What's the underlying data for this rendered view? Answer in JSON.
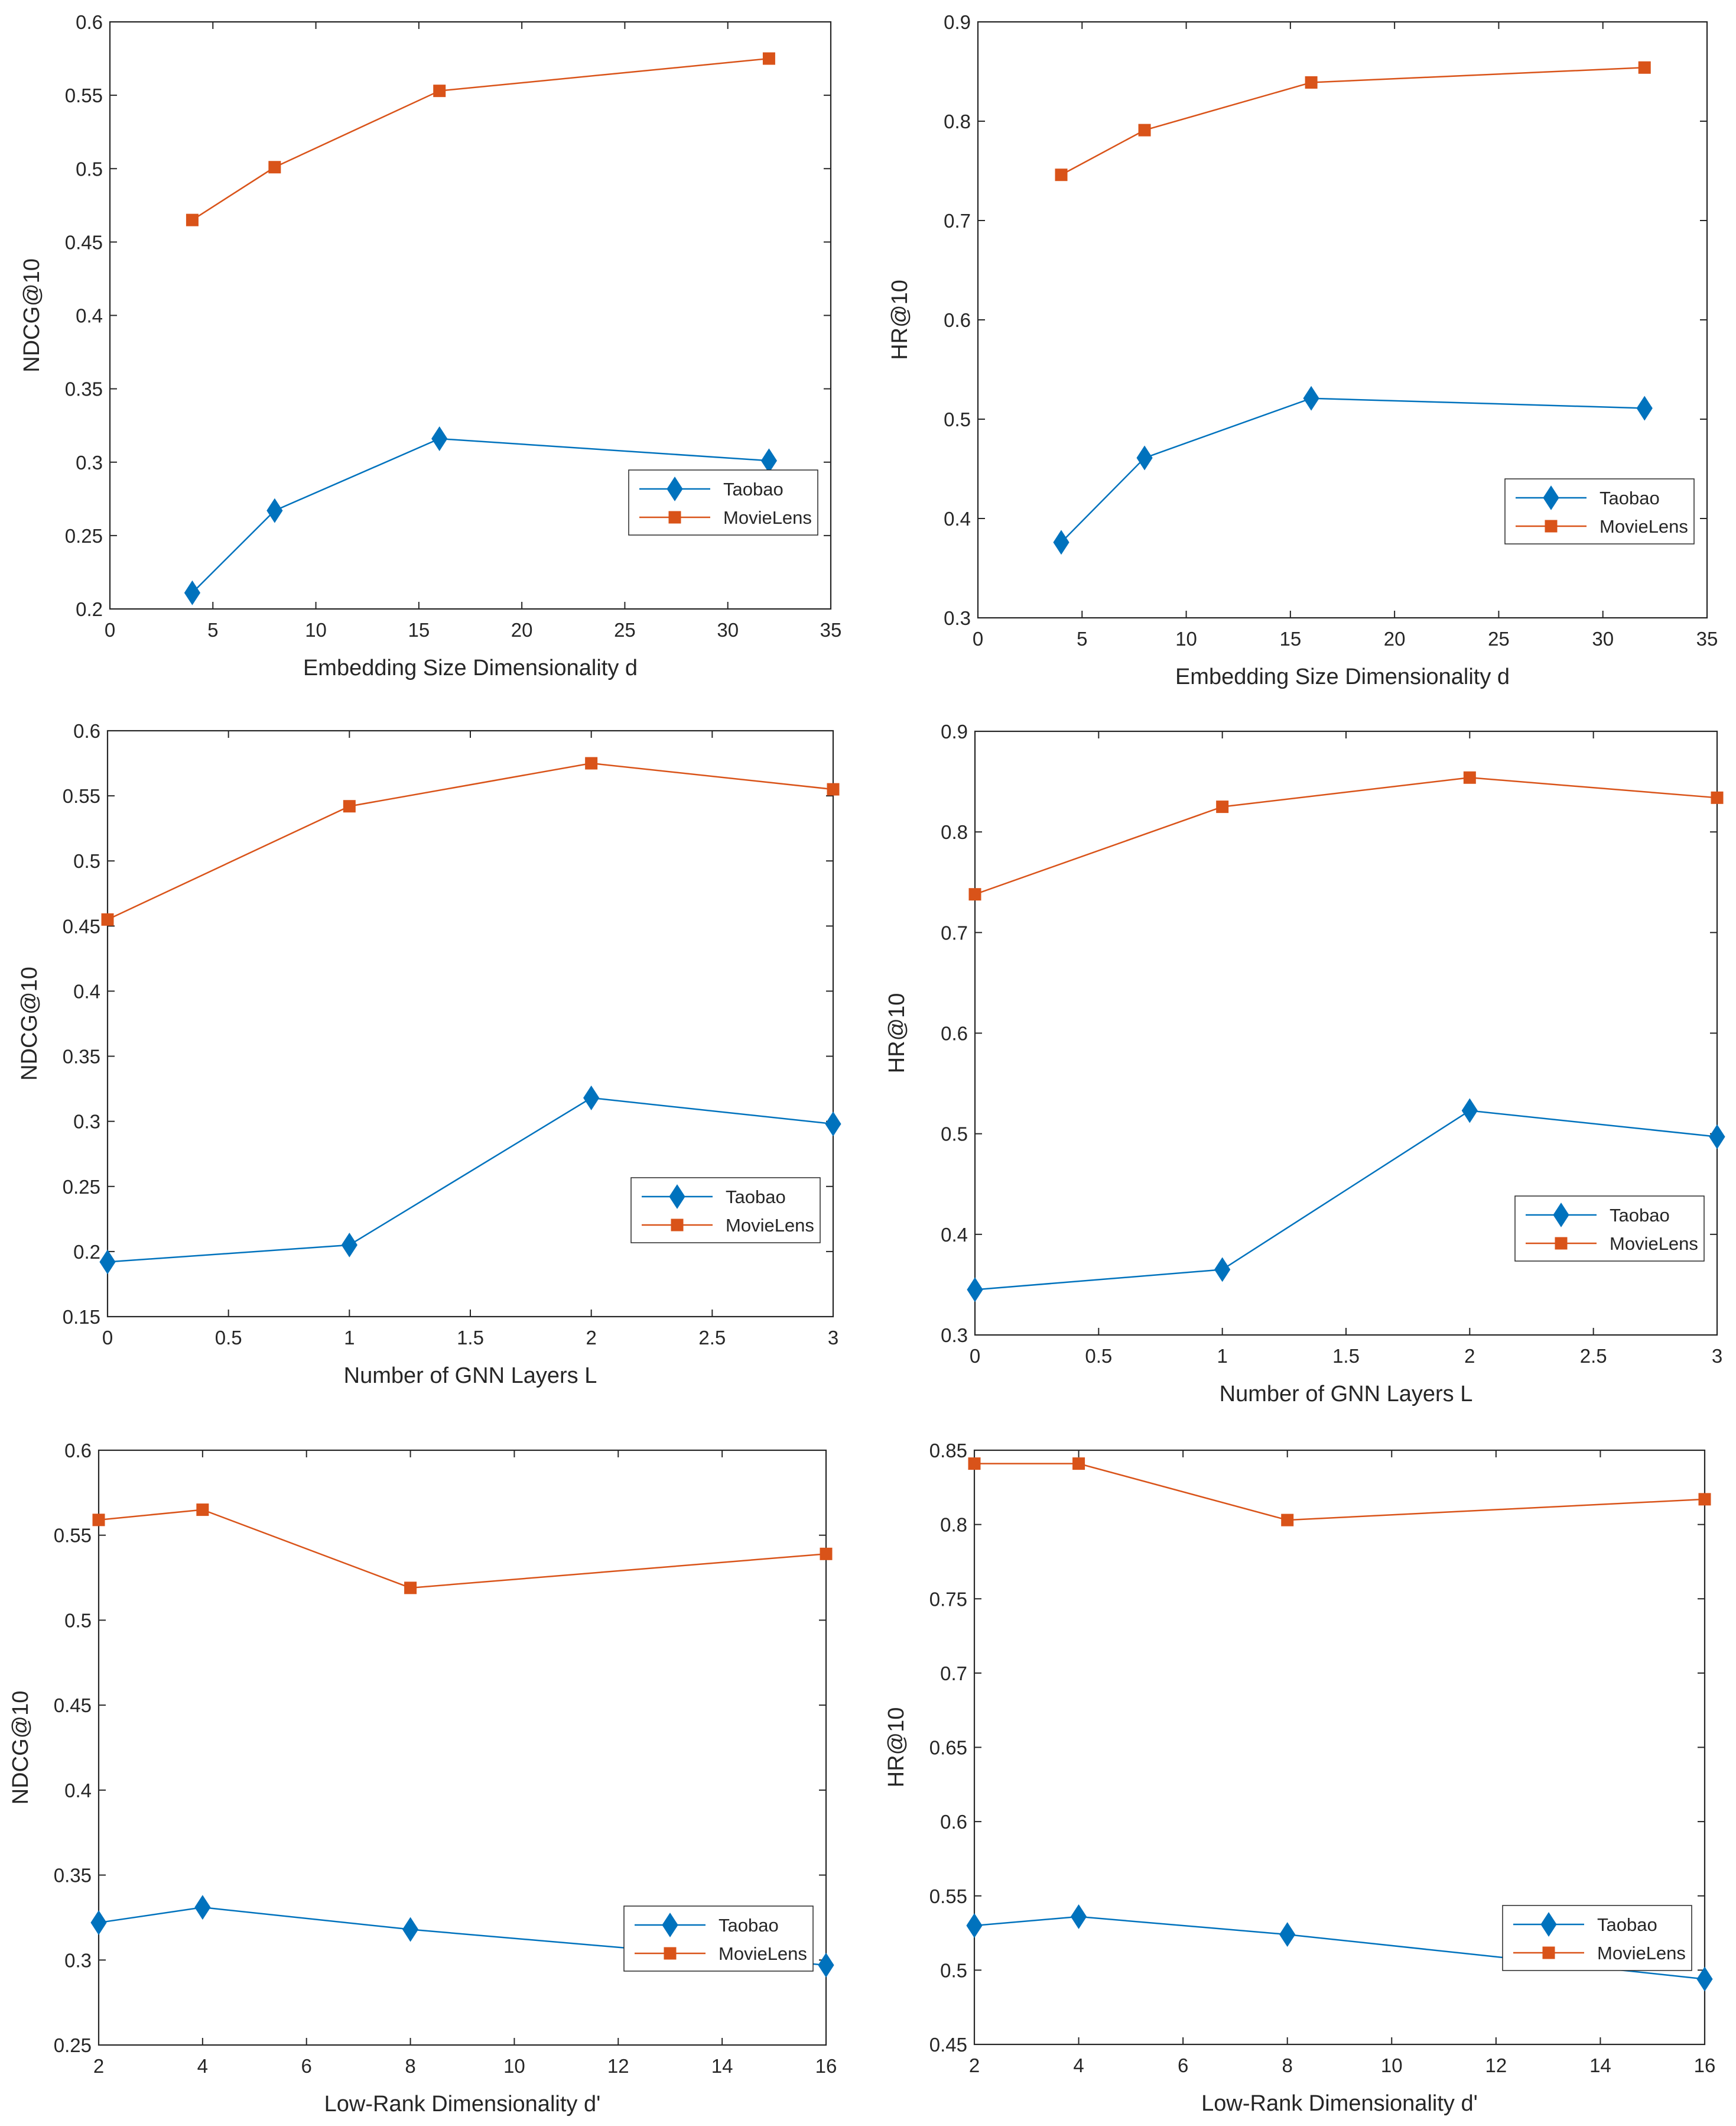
{
  "chart_data": [
    {
      "type": "line",
      "xlabel": "Embedding Size Dimensionality d",
      "ylabel": "NDCG@10",
      "xlim": [
        0,
        35
      ],
      "ylim": [
        0.2,
        0.6
      ],
      "xticks": [
        0,
        5,
        10,
        15,
        20,
        25,
        30,
        35
      ],
      "yticks": [
        0.2,
        0.25,
        0.3,
        0.35,
        0.4,
        0.45,
        0.5,
        0.55,
        0.6
      ],
      "xtick_labels": [
        "0",
        "5",
        "10",
        "15",
        "20",
        "25",
        "30",
        "35"
      ],
      "ytick_labels": [
        "0.2",
        "0.25",
        "0.3",
        "0.35",
        "0.4",
        "0.45",
        "0.5",
        "0.55",
        "0.6"
      ],
      "x": [
        4,
        8,
        16,
        32
      ],
      "series": [
        {
          "name": "Taobao",
          "values": [
            0.211,
            0.267,
            0.316,
            0.301
          ]
        },
        {
          "name": "MovieLens",
          "values": [
            0.465,
            0.501,
            0.553,
            0.575
          ]
        }
      ],
      "legend": "lower-right"
    },
    {
      "type": "line",
      "xlabel": "Embedding Size Dimensionality d",
      "ylabel": "HR@10",
      "xlim": [
        0,
        35
      ],
      "ylim": [
        0.3,
        0.9
      ],
      "xticks": [
        0,
        5,
        10,
        15,
        20,
        25,
        30,
        35
      ],
      "yticks": [
        0.3,
        0.4,
        0.5,
        0.6,
        0.7,
        0.8,
        0.9
      ],
      "xtick_labels": [
        "0",
        "5",
        "10",
        "15",
        "20",
        "25",
        "30",
        "35"
      ],
      "ytick_labels": [
        "0.3",
        "0.4",
        "0.5",
        "0.6",
        "0.7",
        "0.8",
        "0.9"
      ],
      "x": [
        4,
        8,
        16,
        32
      ],
      "series": [
        {
          "name": "Taobao",
          "values": [
            0.376,
            0.461,
            0.521,
            0.511
          ]
        },
        {
          "name": "MovieLens",
          "values": [
            0.746,
            0.791,
            0.839,
            0.854
          ]
        }
      ],
      "legend": "lower-right"
    },
    {
      "type": "line",
      "xlabel": "Number of GNN Layers L",
      "ylabel": "NDCG@10",
      "xlim": [
        0,
        3
      ],
      "ylim": [
        0.15,
        0.6
      ],
      "xticks": [
        0,
        0.5,
        1,
        1.5,
        2,
        2.5,
        3
      ],
      "yticks": [
        0.15,
        0.2,
        0.25,
        0.3,
        0.35,
        0.4,
        0.45,
        0.5,
        0.55,
        0.6
      ],
      "xtick_labels": [
        "0",
        "0.5",
        "1",
        "1.5",
        "2",
        "2.5",
        "3"
      ],
      "ytick_labels": [
        "0.15",
        "0.2",
        "0.25",
        "0.3",
        "0.35",
        "0.4",
        "0.45",
        "0.5",
        "0.55",
        "0.6"
      ],
      "x": [
        0,
        1,
        2,
        3
      ],
      "series": [
        {
          "name": "Taobao",
          "values": [
            0.192,
            0.205,
            0.318,
            0.298
          ]
        },
        {
          "name": "MovieLens",
          "values": [
            0.455,
            0.542,
            0.575,
            0.555
          ]
        }
      ],
      "legend": "lower-right"
    },
    {
      "type": "line",
      "xlabel": "Number of GNN Layers L",
      "ylabel": "HR@10",
      "xlim": [
        0,
        3
      ],
      "ylim": [
        0.3,
        0.9
      ],
      "xticks": [
        0,
        0.5,
        1,
        1.5,
        2,
        2.5,
        3
      ],
      "yticks": [
        0.3,
        0.4,
        0.5,
        0.6,
        0.7,
        0.8,
        0.9
      ],
      "xtick_labels": [
        "0",
        "0.5",
        "1",
        "1.5",
        "2",
        "2.5",
        "3"
      ],
      "ytick_labels": [
        "0.3",
        "0.4",
        "0.5",
        "0.6",
        "0.7",
        "0.8",
        "0.9"
      ],
      "x": [
        0,
        1,
        2,
        3
      ],
      "series": [
        {
          "name": "Taobao",
          "values": [
            0.345,
            0.365,
            0.523,
            0.497
          ]
        },
        {
          "name": "MovieLens",
          "values": [
            0.738,
            0.825,
            0.854,
            0.834
          ]
        }
      ],
      "legend": "lower-right"
    },
    {
      "type": "line",
      "xlabel": "Low-Rank Dimensionality d'",
      "ylabel": "NDCG@10",
      "xlim": [
        2,
        16
      ],
      "ylim": [
        0.25,
        0.6
      ],
      "xticks": [
        2,
        4,
        6,
        8,
        10,
        12,
        14,
        16
      ],
      "yticks": [
        0.25,
        0.3,
        0.35,
        0.4,
        0.45,
        0.5,
        0.55,
        0.6
      ],
      "xtick_labels": [
        "2",
        "4",
        "6",
        "8",
        "10",
        "12",
        "14",
        "16"
      ],
      "ytick_labels": [
        "0.25",
        "0.3",
        "0.35",
        "0.4",
        "0.45",
        "0.5",
        "0.55",
        "0.6"
      ],
      "x": [
        2,
        4,
        8,
        16
      ],
      "series": [
        {
          "name": "Taobao",
          "values": [
            0.322,
            0.331,
            0.318,
            0.297
          ]
        },
        {
          "name": "MovieLens",
          "values": [
            0.559,
            0.565,
            0.519,
            0.539
          ]
        }
      ],
      "legend": "lower-right"
    },
    {
      "type": "line",
      "xlabel": "Low-Rank Dimensionality d'",
      "ylabel": "HR@10",
      "xlim": [
        2,
        16
      ],
      "ylim": [
        0.45,
        0.85
      ],
      "xticks": [
        2,
        4,
        6,
        8,
        10,
        12,
        14,
        16
      ],
      "yticks": [
        0.45,
        0.5,
        0.55,
        0.6,
        0.65,
        0.7,
        0.75,
        0.8,
        0.85
      ],
      "xtick_labels": [
        "2",
        "4",
        "6",
        "8",
        "10",
        "12",
        "14",
        "16"
      ],
      "ytick_labels": [
        "0.45",
        "0.5",
        "0.55",
        "0.6",
        "0.65",
        "0.7",
        "0.75",
        "0.8",
        "0.85"
      ],
      "x": [
        2,
        4,
        8,
        16
      ],
      "series": [
        {
          "name": "Taobao",
          "values": [
            0.53,
            0.536,
            0.524,
            0.494
          ]
        },
        {
          "name": "MovieLens",
          "values": [
            0.841,
            0.841,
            0.803,
            0.817
          ]
        }
      ],
      "legend": "lower-right"
    }
  ]
}
